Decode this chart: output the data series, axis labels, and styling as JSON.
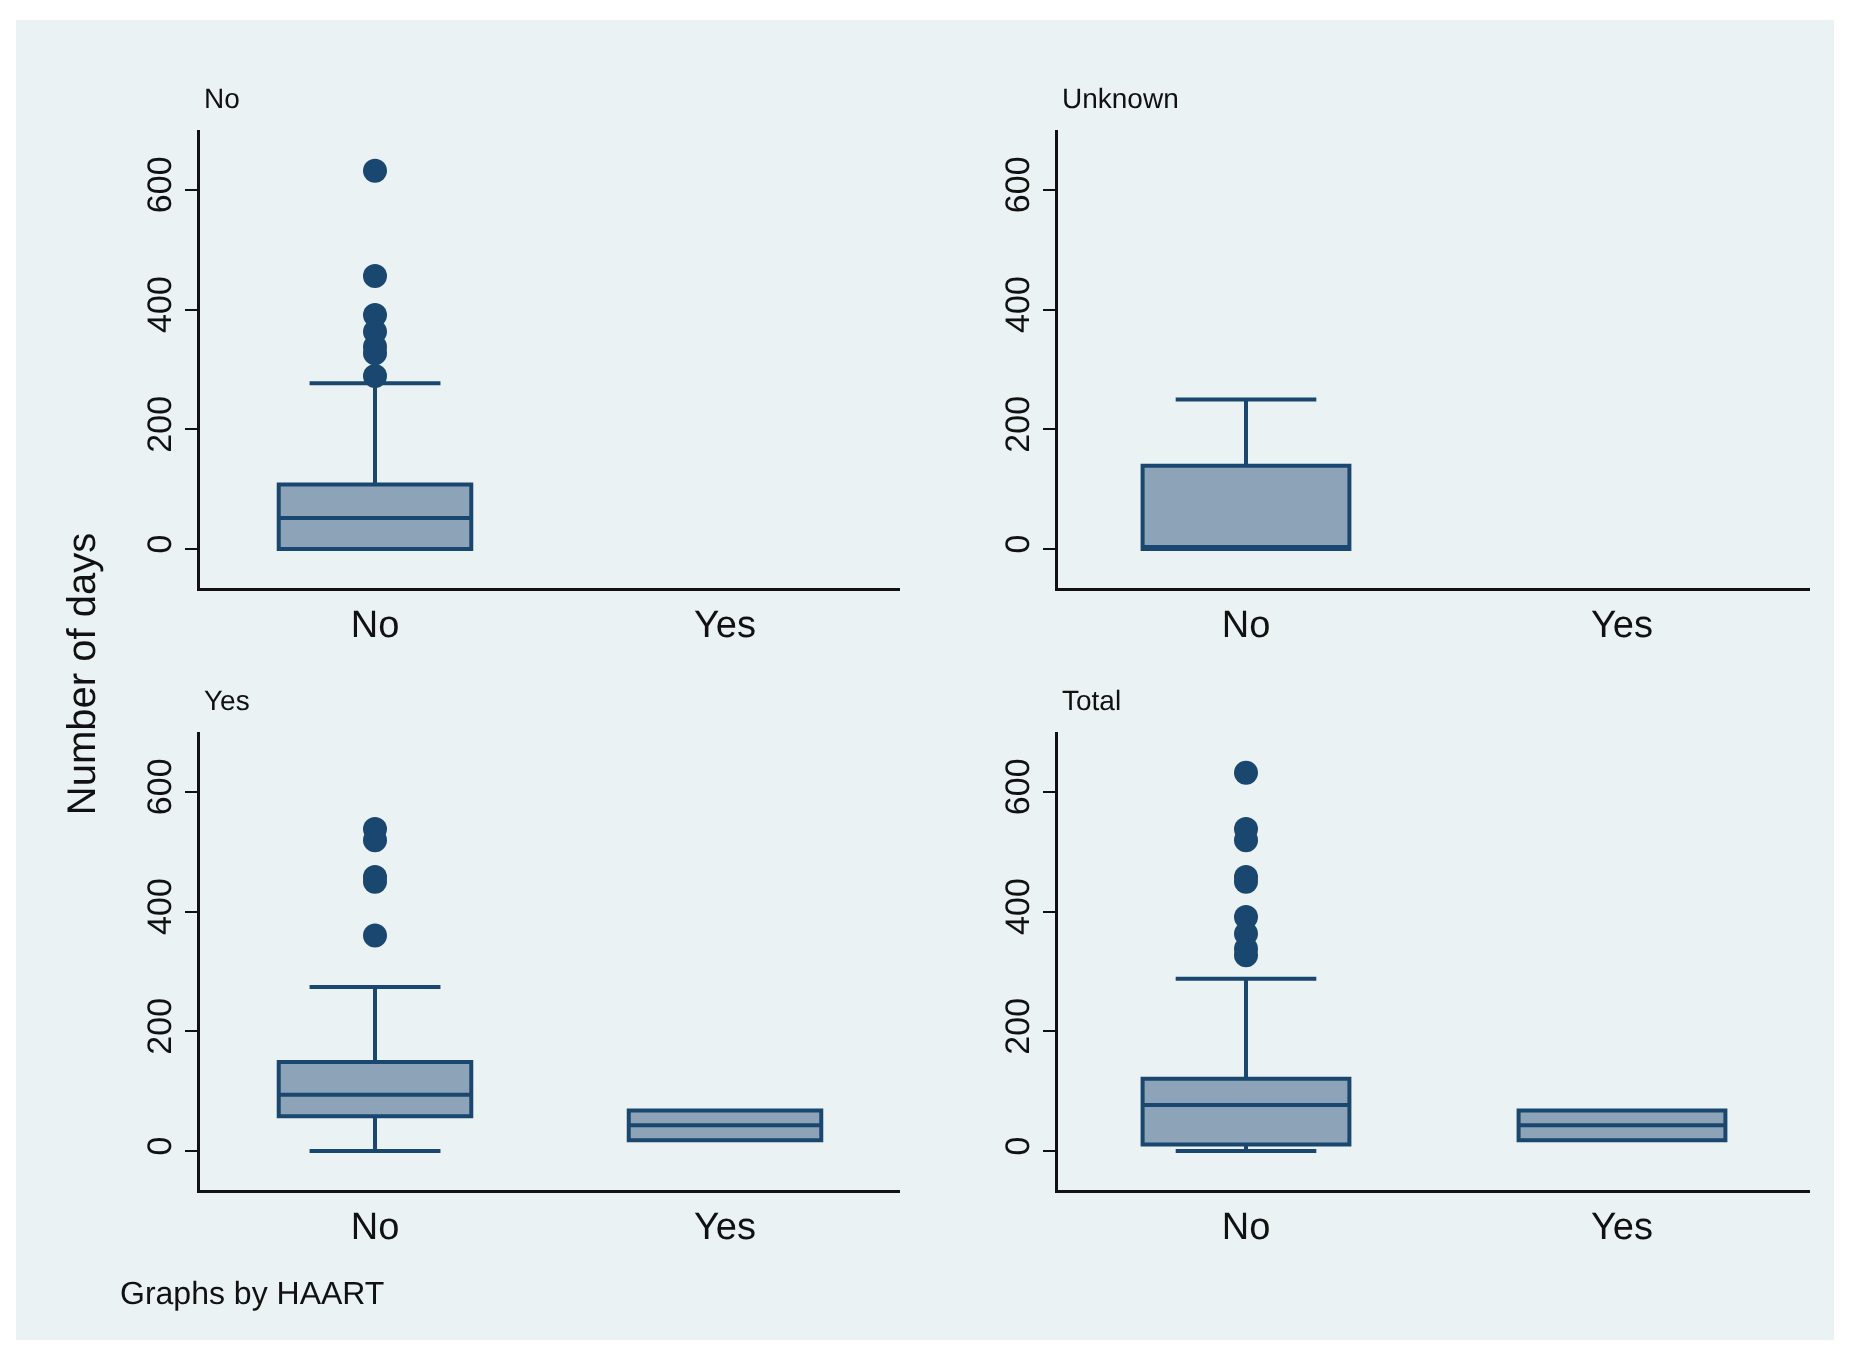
{
  "chart_data": [
    {
      "type": "box",
      "title": "No",
      "ylabel": "Number of days",
      "categories": [
        "No",
        "Yes"
      ],
      "color": "#1a476f",
      "ylim": [
        -65,
        700
      ],
      "yticks": [
        0,
        200,
        400,
        600
      ],
      "boxes": [
        {
          "low": 0,
          "q1": 0,
          "median": 52,
          "q3": 108,
          "high": 277,
          "outliers": [
            632,
            456,
            391,
            363,
            338,
            327,
            289
          ]
        },
        null
      ]
    },
    {
      "type": "box",
      "title": "Unknown",
      "categories": [
        "No",
        "Yes"
      ],
      "color": "#1a476f",
      "ylim": [
        -65,
        700
      ],
      "yticks": [
        0,
        200,
        400,
        600
      ],
      "boxes": [
        {
          "low": 0,
          "q1": 0,
          "median": 0,
          "q3": 139,
          "high": 250
        },
        null
      ]
    },
    {
      "type": "box",
      "title": "Yes",
      "categories": [
        "No",
        "Yes"
      ],
      "color": "#1a476f",
      "ylim": [
        -65,
        700
      ],
      "yticks": [
        0,
        200,
        400,
        600
      ],
      "boxes": [
        {
          "low": 0,
          "q1": 58,
          "median": 94,
          "q3": 149,
          "high": 274,
          "outliers": [
            538,
            519,
            458,
            450,
            360
          ]
        },
        {
          "low": 18,
          "q1": 18,
          "median": 43,
          "q3": 68,
          "high": 68
        }
      ]
    },
    {
      "type": "box",
      "title": "Total",
      "categories": [
        "No",
        "Yes"
      ],
      "color": "#1a476f",
      "ylim": [
        -65,
        700
      ],
      "yticks": [
        0,
        200,
        400,
        600
      ],
      "annotations": [
        "Graphs by HAART"
      ],
      "boxes": [
        {
          "low": 0,
          "q1": 11,
          "median": 77,
          "q3": 121,
          "high": 288,
          "outliers": [
            632,
            538,
            519,
            458,
            450,
            391,
            363,
            338,
            327
          ]
        },
        {
          "low": 18,
          "q1": 18,
          "median": 43,
          "q3": 68,
          "high": 68
        }
      ]
    }
  ]
}
